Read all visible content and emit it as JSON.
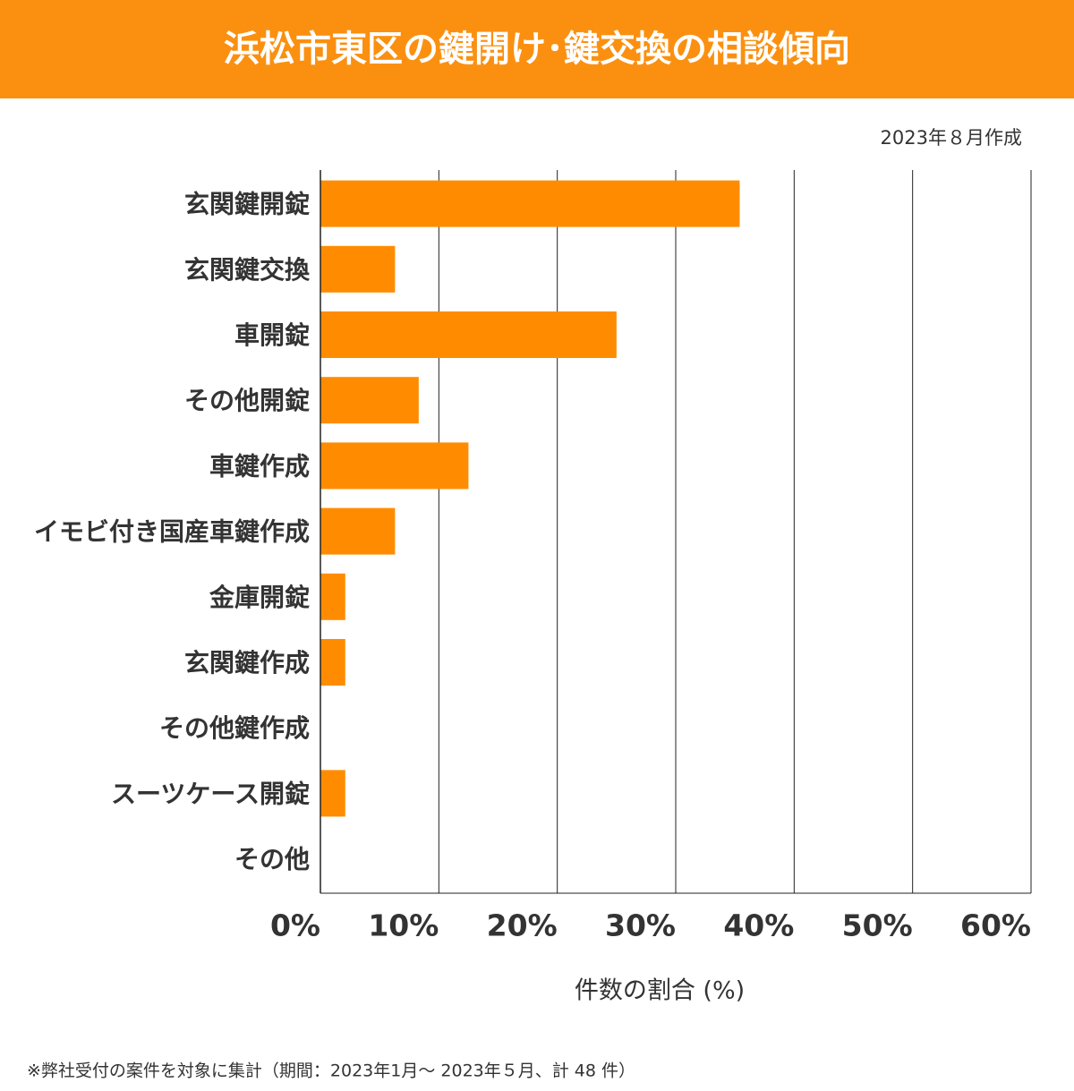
{
  "chart_data": {
    "type": "barh",
    "title": "浜松市東区の鍵開け･鍵交換の相談傾向",
    "subtitle": "2023年８月作成",
    "categories": [
      "玄関鍵開錠",
      "玄関鍵交換",
      "車開錠",
      "その他開錠",
      "車鍵作成",
      "イモビ付き国産車鍵作成",
      "金庫開錠",
      "玄関鍵作成",
      "その他鍵作成",
      "スーツケース開錠",
      "その他"
    ],
    "values": [
      35.4,
      6.3,
      25,
      8.3,
      12.5,
      6.3,
      2.1,
      2.1,
      0,
      2.1,
      0
    ],
    "color": "#ff8c00",
    "header_color": "#fb9010",
    "xlim": [
      0,
      60
    ],
    "xticks": [
      {
        "value": 0,
        "label": "0%"
      },
      {
        "value": 10,
        "label": "10%"
      },
      {
        "value": 20,
        "label": "20%"
      },
      {
        "value": 30,
        "label": "30%"
      },
      {
        "value": 40,
        "label": "40%"
      },
      {
        "value": 50,
        "label": "50%"
      },
      {
        "value": 60,
        "label": "60%"
      }
    ],
    "grid": true,
    "x_label": "件数の割合 (%)",
    "footnote": "※弊社受付の案件を対象に集計（期間：2023年1月～ 2023年５月、計 48 件）"
  }
}
